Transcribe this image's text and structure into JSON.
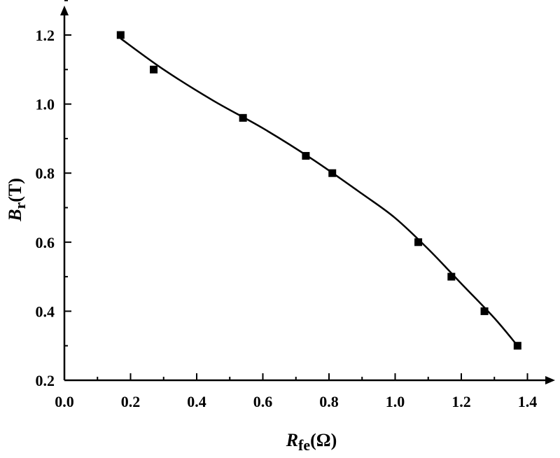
{
  "chart_data": {
    "type": "scatter",
    "xlabel": {
      "main": "R",
      "sub": "fe",
      "unit": "(Ω)"
    },
    "ylabel": {
      "main": "B",
      "sub": "r",
      "unit": "(T)"
    },
    "xlim": [
      0.0,
      1.5
    ],
    "ylim": [
      0.2,
      1.3
    ],
    "x_ticks": [
      "0.0",
      "0.2",
      "0.4",
      "0.6",
      "0.8",
      "1.0",
      "1.2",
      "1.4"
    ],
    "y_ticks": [
      "0.2",
      "0.4",
      "0.6",
      "0.8",
      "1.0",
      "1.2"
    ],
    "grid": false,
    "series": [
      {
        "marker": "square",
        "color": "#000000",
        "points": [
          {
            "x": 0.17,
            "y": 1.2
          },
          {
            "x": 0.27,
            "y": 1.1
          },
          {
            "x": 0.54,
            "y": 0.96
          },
          {
            "x": 0.73,
            "y": 0.85
          },
          {
            "x": 0.81,
            "y": 0.8
          },
          {
            "x": 1.07,
            "y": 0.6
          },
          {
            "x": 1.17,
            "y": 0.5
          },
          {
            "x": 1.27,
            "y": 0.4
          },
          {
            "x": 1.37,
            "y": 0.3
          }
        ]
      }
    ],
    "fit_curve": {
      "color": "#000000",
      "points": [
        {
          "x": 0.17,
          "y": 1.19
        },
        {
          "x": 0.3,
          "y": 1.1
        },
        {
          "x": 0.45,
          "y": 1.01
        },
        {
          "x": 0.6,
          "y": 0.93
        },
        {
          "x": 0.75,
          "y": 0.84
        },
        {
          "x": 0.9,
          "y": 0.74
        },
        {
          "x": 1.0,
          "y": 0.67
        },
        {
          "x": 1.1,
          "y": 0.58
        },
        {
          "x": 1.2,
          "y": 0.48
        },
        {
          "x": 1.3,
          "y": 0.38
        },
        {
          "x": 1.37,
          "y": 0.3
        }
      ]
    }
  }
}
